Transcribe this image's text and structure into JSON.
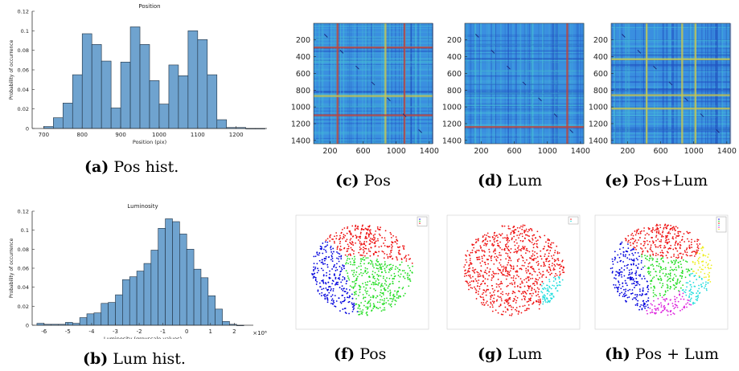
{
  "captions": {
    "a": {
      "tag": "(a)",
      "text": "Pos hist."
    },
    "b": {
      "tag": "(b)",
      "text": "Lum hist."
    },
    "c": {
      "tag": "(c)",
      "text": "Pos"
    },
    "d": {
      "tag": "(d)",
      "text": "Lum"
    },
    "e": {
      "tag": "(e)",
      "text": "Pos+Lum"
    },
    "f": {
      "tag": "(f)",
      "text": "Pos"
    },
    "g": {
      "tag": "(g)",
      "text": "Lum"
    },
    "h": {
      "tag": "(h)",
      "text": "Pos + Lum"
    }
  },
  "colors": {
    "bar_fill": "#6fa3cf",
    "bar_edge": "#1f2f3f",
    "matrix_base": "#3a8fe0",
    "matrix_light": "#48c0d8",
    "matrix_dark": "#2150c0",
    "matrix_red": "#c0453a",
    "matrix_yellow": "#c8c850",
    "cluster_1": "#0000dd",
    "cluster_2": "#22dd22",
    "cluster_3": "#ee1111",
    "cluster_4": "#22dddd",
    "cluster_5": "#dd22dd",
    "cluster_6": "#eeee22"
  },
  "chart_data": [
    {
      "id": "a",
      "type": "bar",
      "title": "Position",
      "xlabel": "Position (pix)",
      "ylabel": "Probability of occurrence",
      "xlim": [
        670,
        1280
      ],
      "ylim": [
        0,
        0.12
      ],
      "xticks": [
        "700",
        "800",
        "900",
        "1000",
        "1100",
        "1200"
      ],
      "xtick_values": [
        700,
        800,
        900,
        1000,
        1100,
        1200
      ],
      "yticks": [
        "0",
        "0.02",
        "0.04",
        "0.06",
        "0.08",
        "0.1",
        "0.12"
      ],
      "ytick_values": [
        0,
        0.02,
        0.04,
        0.06,
        0.08,
        0.1,
        0.12
      ],
      "bin_edges": [
        700,
        725,
        750,
        775,
        800,
        825,
        850,
        875,
        900,
        925,
        950,
        975,
        1000,
        1025,
        1050,
        1075,
        1100,
        1125,
        1150,
        1175,
        1200,
        1225,
        1250,
        1275
      ],
      "values": [
        0.002,
        0.011,
        0.026,
        0.055,
        0.097,
        0.086,
        0.069,
        0.021,
        0.068,
        0.104,
        0.086,
        0.049,
        0.025,
        0.065,
        0.054,
        0.1,
        0.091,
        0.055,
        0.009,
        0.001,
        0.001,
        0.0,
        0.0
      ]
    },
    {
      "id": "b",
      "type": "bar",
      "title": "Luminosity",
      "xlabel": "Luminosity (greyscale values)",
      "ylabel": "Probability of occurrence",
      "xlim": [
        -6.5,
        2.8
      ],
      "ylim": [
        0,
        0.12
      ],
      "x_multiplier": "×10⁶",
      "xticks": [
        "-6",
        "-5",
        "-4",
        "-3",
        "-2",
        "-1",
        "0",
        "1",
        "2"
      ],
      "xtick_values": [
        -6,
        -5,
        -4,
        -3,
        -2,
        -1,
        0,
        1,
        2
      ],
      "yticks": [
        "0",
        "0.02",
        "0.04",
        "0.06",
        "0.08",
        "0.1",
        "0.12"
      ],
      "ytick_values": [
        0,
        0.02,
        0.04,
        0.06,
        0.08,
        0.1,
        0.12
      ],
      "bin_start": -6.3,
      "bin_width": 0.3,
      "values": [
        0.002,
        0.001,
        0.001,
        0.001,
        0.003,
        0.002,
        0.008,
        0.012,
        0.013,
        0.023,
        0.024,
        0.032,
        0.048,
        0.051,
        0.057,
        0.065,
        0.079,
        0.102,
        0.112,
        0.109,
        0.096,
        0.08,
        0.059,
        0.05,
        0.031,
        0.017,
        0.004,
        0.001,
        0.0
      ]
    },
    {
      "id": "c",
      "type": "heatmap",
      "xlim": [
        1,
        1440
      ],
      "ylim": [
        1,
        1440
      ],
      "xticks": [
        "200",
        "600",
        "1000",
        "1400"
      ],
      "xtick_values": [
        200,
        600,
        1000,
        1400
      ],
      "yticks": [
        "200",
        "400",
        "600",
        "800",
        "1000",
        "1200",
        "1400"
      ],
      "ytick_values": [
        200,
        400,
        600,
        800,
        1000,
        1200,
        1400
      ],
      "band_lines": [
        290,
        870,
        1100
      ],
      "band_colors": [
        "red",
        "yellow",
        "red"
      ]
    },
    {
      "id": "d",
      "type": "heatmap",
      "xlim": [
        1,
        1440
      ],
      "ylim": [
        1,
        1440
      ],
      "xticks": [
        "200",
        "600",
        "1000",
        "1400"
      ],
      "xtick_values": [
        200,
        600,
        1000,
        1400
      ],
      "yticks": [
        "200",
        "400",
        "600",
        "800",
        "1000",
        "1200",
        "1400"
      ],
      "ytick_values": [
        200,
        400,
        600,
        800,
        1000,
        1200,
        1400
      ],
      "band_lines": [
        1240
      ],
      "band_colors": [
        "red"
      ]
    },
    {
      "id": "e",
      "type": "heatmap",
      "xlim": [
        1,
        1440
      ],
      "ylim": [
        1,
        1440
      ],
      "xticks": [
        "200",
        "600",
        "1000",
        "1400"
      ],
      "xtick_values": [
        200,
        600,
        1000,
        1400
      ],
      "yticks": [
        "200",
        "400",
        "600",
        "800",
        "1000",
        "1200",
        "1400"
      ],
      "ytick_values": [
        200,
        400,
        600,
        800,
        1000,
        1200,
        1400
      ],
      "band_lines": [
        430,
        860,
        1020
      ],
      "band_colors": [
        "yellow",
        "yellow",
        "yellow"
      ]
    },
    {
      "id": "f",
      "type": "scatter",
      "clusters": [
        "cluster_1",
        "cluster_2",
        "cluster_3"
      ]
    },
    {
      "id": "g",
      "type": "scatter",
      "clusters": [
        "cluster_3",
        "cluster_4"
      ]
    },
    {
      "id": "h",
      "type": "scatter",
      "clusters": [
        "cluster_1",
        "cluster_2",
        "cluster_3",
        "cluster_4",
        "cluster_5",
        "cluster_6"
      ]
    }
  ]
}
